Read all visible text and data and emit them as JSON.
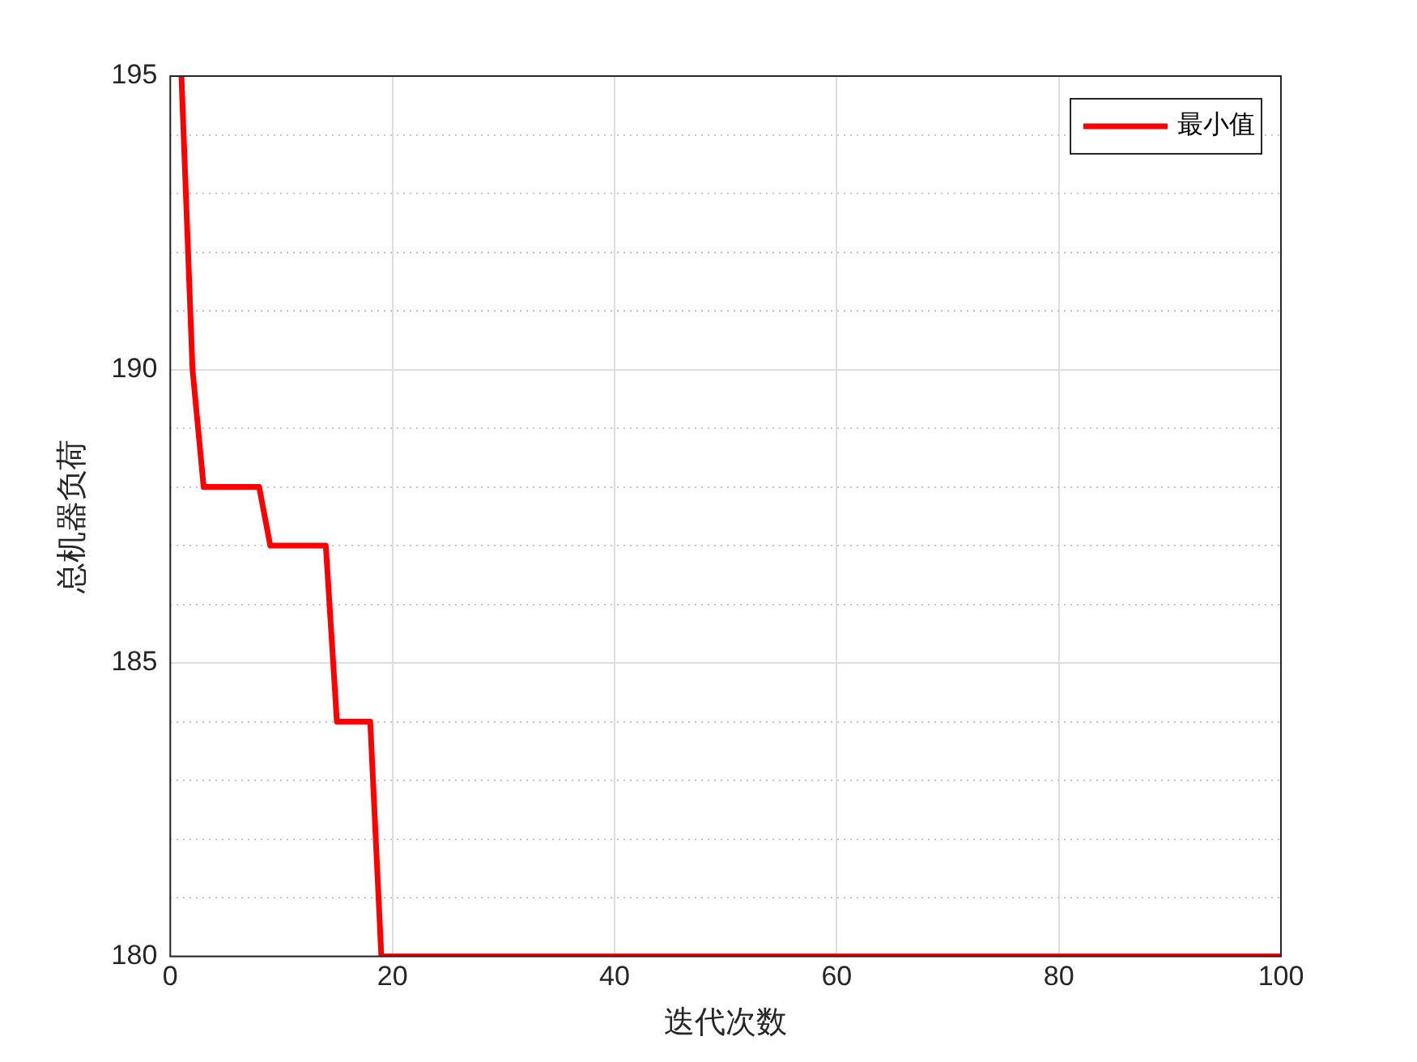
{
  "chart_data": {
    "type": "line",
    "xlabel": "迭代次数",
    "ylabel": "总机器负荷",
    "xlim": [
      0,
      100
    ],
    "xticks": [
      0,
      20,
      40,
      60,
      80,
      100
    ],
    "ylim": [
      180,
      195
    ],
    "yticks": [
      180,
      {
        "value": 181,
        "label": null
      },
      {
        "value": 182,
        "label": null
      },
      {
        "value": 183,
        "label": null
      },
      {
        "value": 184,
        "label": null
      },
      185,
      {
        "value": 186,
        "label": null
      },
      {
        "value": 187,
        "label": null
      },
      {
        "value": 188,
        "label": null
      },
      {
        "value": 189,
        "label": null
      },
      190,
      {
        "value": 191,
        "label": null
      },
      {
        "value": 192,
        "label": null
      },
      {
        "value": 193,
        "label": null
      },
      {
        "value": 194,
        "label": null
      },
      195
    ],
    "grid": true,
    "legend": "top right",
    "marker": "none",
    "line_style": "solid",
    "series": [
      {
        "name": "最小值",
        "color": "#ff0000",
        "x": [
          1,
          2,
          3,
          8,
          9,
          14,
          15,
          18,
          19,
          100
        ],
        "values": [
          195,
          190,
          188,
          188,
          187,
          187,
          184,
          184,
          180,
          180
        ]
      }
    ]
  }
}
